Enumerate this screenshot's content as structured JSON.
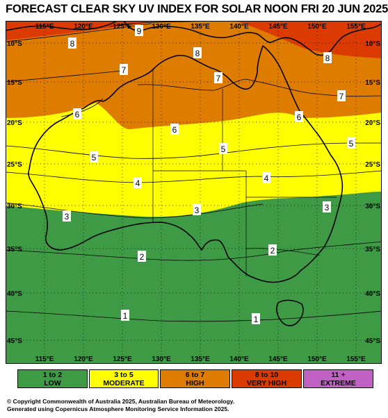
{
  "title": "FORECAST CLEAR SKY UV INDEX FOR SOLAR NOON FRI 20 JUN 2025",
  "colors": {
    "low": "#3f9a46",
    "moderate": "#ffff00",
    "high": "#de7c00",
    "very_high": "#db3a00",
    "extreme": "#c061c4",
    "land_outline": "#000000",
    "grid": "#000000"
  },
  "lon_labels": [
    "115°E",
    "120°E",
    "125°E",
    "130°E",
    "135°E",
    "140°E",
    "145°E",
    "150°E",
    "155°E"
  ],
  "lat_labels": [
    "10°S",
    "15°S",
    "20°S",
    "25°S",
    "30°S",
    "35°S",
    "40°S",
    "45°S"
  ],
  "contour_labels": {
    "top": [
      "9",
      "8",
      "8",
      "8"
    ],
    "seven": [
      "7",
      "7",
      "7"
    ],
    "six": [
      "6",
      "6",
      "6"
    ],
    "five": [
      "5",
      "5",
      "5"
    ],
    "four": [
      "4",
      "4"
    ],
    "three": [
      "3",
      "3",
      "3"
    ],
    "two": [
      "2",
      "2"
    ],
    "one": [
      "1",
      "1"
    ]
  },
  "legend": [
    {
      "range": "1 to 2",
      "label": "LOW"
    },
    {
      "range": "3 to 5",
      "label": "MODERATE"
    },
    {
      "range": "6 to 7",
      "label": "HIGH"
    },
    {
      "range": "8 to 10",
      "label": "VERY HIGH"
    },
    {
      "range": "11 +",
      "label": "EXTREME"
    }
  ],
  "footer": {
    "line1": "© Copyright Commonwealth of Australia 2025, Australian Bureau of Meteorology.",
    "line2": "Generated using Copernicus Atmosphere Monitoring Service Information 2025."
  }
}
